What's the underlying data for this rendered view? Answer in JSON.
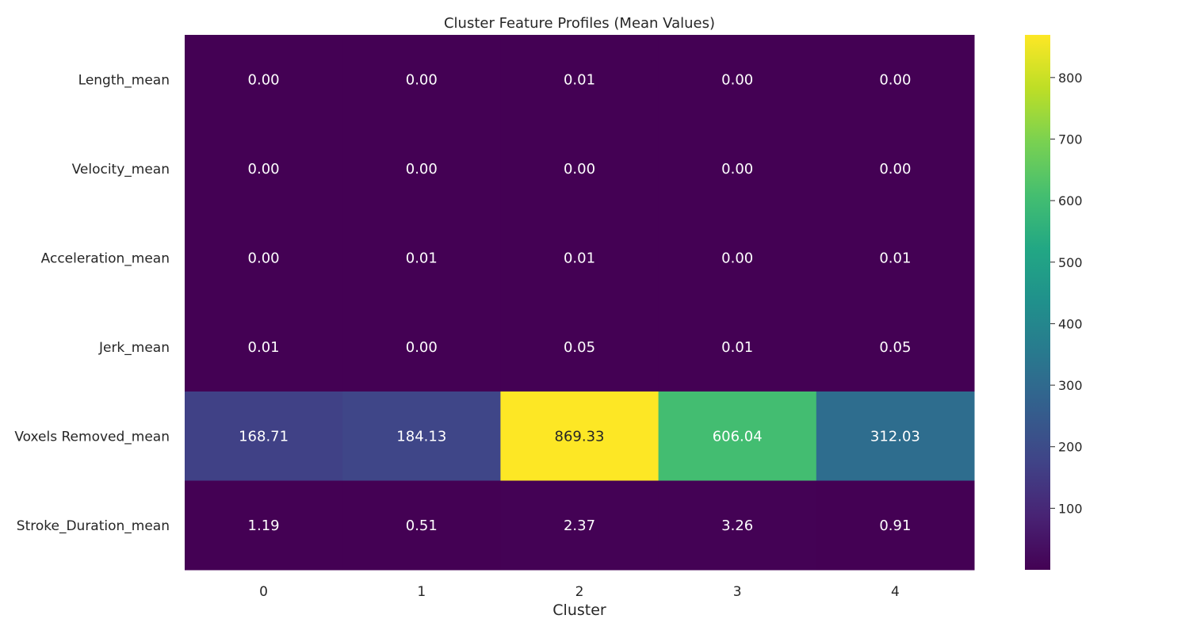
{
  "chart_data": {
    "type": "heatmap",
    "title": "Cluster Feature Profiles (Mean Values)",
    "xlabel": "Cluster",
    "ylabel": "",
    "x_categories": [
      "0",
      "1",
      "2",
      "3",
      "4"
    ],
    "y_categories": [
      "Length_mean",
      "Velocity_mean",
      "Acceleration_mean",
      "Jerk_mean",
      "Voxels Removed_mean",
      "Stroke_Duration_mean"
    ],
    "values": [
      [
        0.0,
        0.0,
        0.01,
        0.0,
        0.0
      ],
      [
        0.0,
        0.0,
        0.0,
        0.0,
        0.0
      ],
      [
        0.0,
        0.01,
        0.01,
        0.0,
        0.01
      ],
      [
        0.01,
        0.0,
        0.05,
        0.01,
        0.05
      ],
      [
        168.71,
        184.13,
        869.33,
        606.04,
        312.03
      ],
      [
        1.19,
        0.51,
        2.37,
        3.26,
        0.91
      ]
    ],
    "value_labels": [
      [
        "0.00",
        "0.00",
        "0.01",
        "0.00",
        "0.00"
      ],
      [
        "0.00",
        "0.00",
        "0.00",
        "0.00",
        "0.00"
      ],
      [
        "0.00",
        "0.01",
        "0.01",
        "0.00",
        "0.01"
      ],
      [
        "0.01",
        "0.00",
        "0.05",
        "0.01",
        "0.05"
      ],
      [
        "168.71",
        "184.13",
        "869.33",
        "606.04",
        "312.03"
      ],
      [
        "1.19",
        "0.51",
        "2.37",
        "3.26",
        "0.91"
      ]
    ],
    "colormap": "viridis",
    "color_range": [
      0,
      869.33
    ],
    "colorbar_ticks": [
      100,
      200,
      300,
      400,
      500,
      600,
      700,
      800
    ],
    "grid": false,
    "colors": {
      "low": "#440154",
      "high": "#fde725",
      "text_light": "#ffffff",
      "text_dark": "#262626"
    }
  }
}
